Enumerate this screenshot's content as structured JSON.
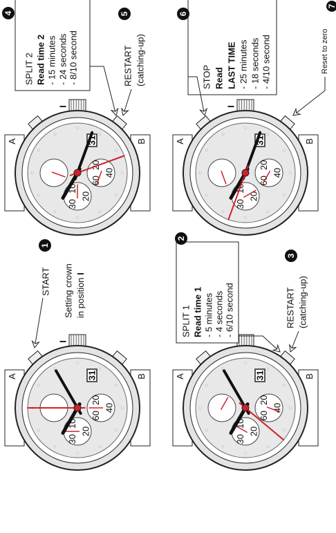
{
  "watch": {
    "pusher_a": "A",
    "pusher_b": "B",
    "crown_mark": "I",
    "date": "31",
    "left_subdial": [
      "30",
      "10",
      "20"
    ],
    "right_subdial": [
      "60",
      "20",
      "40"
    ]
  },
  "steps": [
    {
      "number": "1",
      "label": "START",
      "note": "Setting crown",
      "note2": "in position",
      "crown_position": "I"
    },
    {
      "number": "2",
      "title": "SPLIT 1",
      "heading": "Read time 1",
      "lines": [
        "- 5 minutes",
        "- 4 seconds",
        "- 6/10 second"
      ]
    },
    {
      "number": "3",
      "label": "RESTART",
      "sublabel": "(catching-up)"
    },
    {
      "number": "4",
      "title": "SPLIT 2",
      "heading": "Read time 2",
      "lines": [
        "- 15 minutes",
        "- 24 seconds",
        "- 8/10 second"
      ]
    },
    {
      "number": "5",
      "label": "RESTART",
      "sublabel": "(catching-up)"
    },
    {
      "number": "6",
      "title": "STOP",
      "heading": "Read",
      "heading2": "LAST TIME",
      "lines": [
        "- 25 minutes",
        "- 18 seconds",
        "- 4/10 second"
      ]
    },
    {
      "number": "7",
      "label": "Reset to zero"
    }
  ]
}
